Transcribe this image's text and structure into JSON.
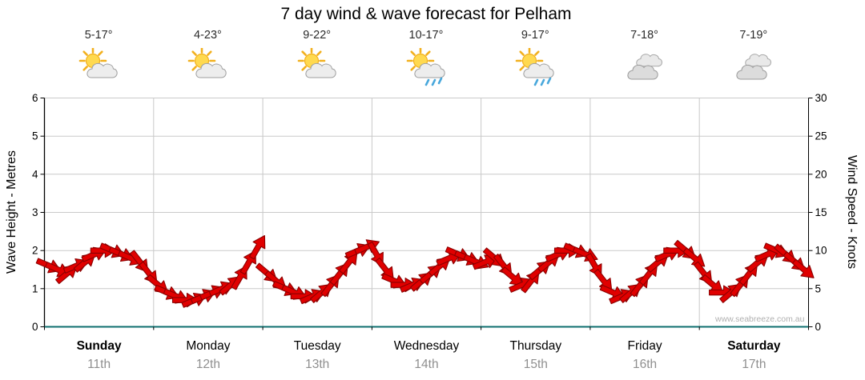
{
  "title": "7 day wind & wave forecast for Pelham",
  "watermark": "www.seabreeze.com.au",
  "days": [
    {
      "name": "Sunday",
      "date": "11th",
      "temp": "5-17°",
      "icon": "sun-cloud",
      "weekend": true
    },
    {
      "name": "Monday",
      "date": "12th",
      "temp": "4-23°",
      "icon": "sun-cloud",
      "weekend": false
    },
    {
      "name": "Tuesday",
      "date": "13th",
      "temp": "9-22°",
      "icon": "sun-cloud",
      "weekend": false
    },
    {
      "name": "Wednesday",
      "date": "14th",
      "temp": "10-17°",
      "icon": "sun-cloud-rain",
      "weekend": false
    },
    {
      "name": "Thursday",
      "date": "15th",
      "temp": "9-17°",
      "icon": "sun-cloud-rain",
      "weekend": false
    },
    {
      "name": "Friday",
      "date": "16th",
      "temp": "7-18°",
      "icon": "cloudy",
      "weekend": false
    },
    {
      "name": "Saturday",
      "date": "17th",
      "temp": "7-19°",
      "icon": "cloudy",
      "weekend": true
    }
  ],
  "chart_data": {
    "type": "scatter",
    "marker": "wind-direction-arrow",
    "title": "7 day wind & wave forecast for Pelham",
    "x_axis": {
      "categories": [
        "Sunday",
        "Monday",
        "Tuesday",
        "Wednesday",
        "Thursday",
        "Friday",
        "Saturday"
      ],
      "points_per_day": 12,
      "hours_step": 2
    },
    "y_left": {
      "label": "Wave Height - Metres",
      "range": [
        0,
        6
      ],
      "ticks": [
        0,
        1,
        2,
        3,
        4,
        5,
        6
      ]
    },
    "y_right": {
      "label": "Wind Speed - Knots",
      "range": [
        0,
        30
      ],
      "ticks": [
        0,
        5,
        10,
        15,
        20,
        25,
        30
      ]
    },
    "grid": true,
    "axis_equivalence": "5 knots per metre (axes aligned)",
    "series": [
      {
        "name": "Wind speed (knots)",
        "values": [
          8,
          7.5,
          7,
          8,
          8.5,
          9.5,
          10,
          10,
          9.5,
          9,
          8.5,
          7,
          5.5,
          4.5,
          4,
          3.5,
          3.5,
          4,
          4.5,
          5,
          5.5,
          6.5,
          8.5,
          10.5,
          7,
          6,
          5,
          4.5,
          4,
          4,
          4.5,
          5.5,
          7,
          8.5,
          10,
          10.5,
          9.5,
          7.5,
          6,
          5.5,
          5.5,
          6,
          7,
          8,
          9,
          9.5,
          9,
          8.5,
          8.5,
          9,
          8,
          6.5,
          5.5,
          6,
          7.5,
          8.5,
          9.5,
          10,
          10,
          9.5,
          8,
          6,
          4.5,
          4,
          4.5,
          5.5,
          7,
          8.5,
          9.5,
          10,
          10,
          9,
          7,
          5.5,
          4.5,
          4.5,
          5.5,
          7,
          8.5,
          9.5,
          10,
          9.5,
          8.5,
          7.5
        ]
      },
      {
        "name": "Arrow rotation (deg, 0 = right, positive = down)",
        "values": [
          23,
          23,
          -40,
          -23,
          -40,
          -23,
          0,
          23,
          23,
          23,
          52,
          52,
          40,
          23,
          23,
          0,
          -23,
          -23,
          -23,
          -23,
          -40,
          -60,
          -60,
          -60,
          40,
          40,
          23,
          23,
          0,
          -23,
          -40,
          -52,
          -52,
          -52,
          -23,
          -23,
          60,
          52,
          23,
          0,
          -23,
          -40,
          -40,
          -40,
          -23,
          23,
          23,
          23,
          -23,
          40,
          52,
          40,
          -23,
          -52,
          -40,
          -40,
          -23,
          0,
          23,
          23,
          60,
          52,
          23,
          -23,
          -40,
          -52,
          -52,
          -40,
          -23,
          0,
          40,
          40,
          52,
          40,
          0,
          -40,
          -52,
          -52,
          -40,
          -23,
          23,
          40,
          40,
          40
        ]
      }
    ]
  },
  "colors": {
    "arrow_fill": "#e00000",
    "arrow_outline": "#8b0000",
    "grid": "#c9c9c9",
    "axis": "#000000",
    "baseline": "#0d6e6e",
    "date_text": "#8f8f8f",
    "watermark": "#b0b0b0",
    "rain": "#49a8dc",
    "sun": "#ffd94f",
    "sun_ray": "#f2b01e",
    "cloud": "#ededed"
  }
}
